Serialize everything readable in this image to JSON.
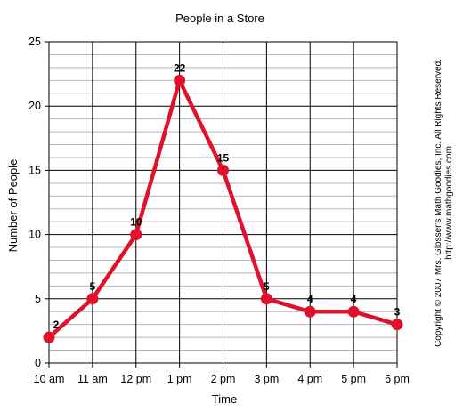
{
  "chart_data": {
    "type": "line",
    "title": "People in a Store",
    "xlabel": "Time",
    "ylabel": "Number of People",
    "categories": [
      "10 am",
      "11 am",
      "12 pm",
      "1 pm",
      "2 pm",
      "3 pm",
      "4 pm",
      "5 pm",
      "6 pm"
    ],
    "series": [
      {
        "values": [
          2,
          5,
          10,
          22,
          15,
          5,
          4,
          4,
          3
        ],
        "color": "#e0112b"
      }
    ],
    "ylim": [
      0,
      25
    ],
    "yticks": [
      0,
      5,
      10,
      15,
      20,
      25
    ],
    "minor_step": 1,
    "grid": true,
    "data_labels": true,
    "legend": "none"
  },
  "credit": {
    "line1": "Copyright © 2007 Mrs. Glosser's Math Goodies, Inc. All Rights Reserved.",
    "line2": "http://www.mathgoodies.com"
  }
}
